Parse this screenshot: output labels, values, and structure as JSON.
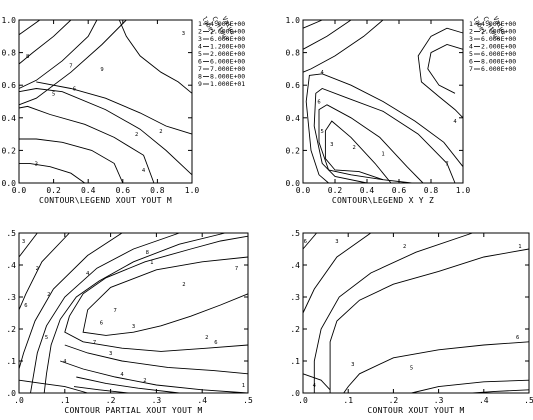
{
  "chart_data": [
    {
      "type": "contour",
      "panel": "top-left",
      "xlabel": "CONTOUR\\LEGEND XOUT YOUT M",
      "x_ticks": [
        "0.0",
        "0.2",
        "0.4",
        "0.6",
        "0.8",
        "1.0"
      ],
      "y_ticks": [
        "0.0",
        "0.2",
        "0.4",
        "0.6",
        "0.8",
        "1.0"
      ],
      "xlim": [
        0,
        1
      ],
      "ylim": [
        0,
        1
      ],
      "legend": {
        "headers": [
          "label",
          "Contour",
          "Value"
        ],
        "entries": [
          {
            "label": "1",
            "value": "4.000E+00"
          },
          {
            "label": "2",
            "value": "2.000E+00"
          },
          {
            "label": "3",
            "value": "6.000E+00"
          },
          {
            "label": "4",
            "value": "1.200E+00"
          },
          {
            "label": "5",
            "value": "2.000E+00"
          },
          {
            "label": "6",
            "value": "6.000E+00"
          },
          {
            "label": "7",
            "value": "7.000E+00"
          },
          {
            "label": "8",
            "value": "8.000E+00"
          },
          {
            "label": "9",
            "value": "1.000E+01"
          }
        ]
      },
      "contour_labels": [
        "3",
        "5",
        "9",
        "2",
        "2",
        "3",
        "6",
        "7",
        "8",
        "4"
      ]
    },
    {
      "type": "contour",
      "panel": "top-right",
      "xlabel": "CONTOUR\\LEGEND X Y Z",
      "x_ticks": [
        "0.0",
        "0.2",
        "0.4",
        "0.6",
        "0.8",
        "1.0"
      ],
      "y_ticks": [
        "0.0",
        "0.2",
        "0.4",
        "0.6",
        "0.8",
        "1.0"
      ],
      "xlim": [
        0,
        1
      ],
      "ylim": [
        0,
        1
      ],
      "legend": {
        "headers": [
          "label",
          "Contour",
          "Value"
        ],
        "entries": [
          {
            "label": "1",
            "value": "4.000E+00"
          },
          {
            "label": "2",
            "value": "2.000E+00"
          },
          {
            "label": "3",
            "value": "6.000E+00"
          },
          {
            "label": "4",
            "value": "2.000E+00"
          },
          {
            "label": "5",
            "value": "6.000E+00"
          },
          {
            "label": "6",
            "value": "8.000E+00"
          },
          {
            "label": "7",
            "value": "6.000E+00"
          }
        ]
      },
      "contour_labels": [
        "4",
        "6",
        "5",
        "3",
        "2",
        "1",
        "4",
        "7"
      ]
    },
    {
      "type": "contour",
      "panel": "bottom-left",
      "xlabel": "CONTOUR PARTIAL XOUT YOUT M",
      "x_ticks": [
        ".0",
        ".1",
        ".2",
        ".3",
        ".4",
        ".5"
      ],
      "y_ticks": [
        ".0",
        ".1",
        ".2",
        ".3",
        ".4",
        ".5"
      ],
      "xlim": [
        0,
        0.5
      ],
      "ylim": [
        0,
        0.5
      ],
      "contour_labels": [
        "3",
        "2",
        "6",
        "5",
        "4",
        "7",
        "2",
        "3",
        "7",
        "6",
        "2",
        "8",
        "2",
        "2",
        "4",
        "1",
        "6",
        "7",
        "4",
        "3",
        "1"
      ]
    },
    {
      "type": "contour",
      "panel": "bottom-right",
      "xlabel": "CONTOUR XOUT YOUT M",
      "x_ticks": [
        ".0",
        ".1",
        ".2",
        ".3",
        ".4",
        ".5"
      ],
      "y_ticks": [
        ".0",
        ".1",
        ".2",
        ".3",
        ".4",
        ".5"
      ],
      "xlim": [
        0,
        0.5
      ],
      "ylim": [
        0,
        0.5
      ],
      "contour_labels": [
        "6",
        "3",
        "2",
        "1",
        "6",
        "5",
        "3",
        "4"
      ]
    }
  ]
}
